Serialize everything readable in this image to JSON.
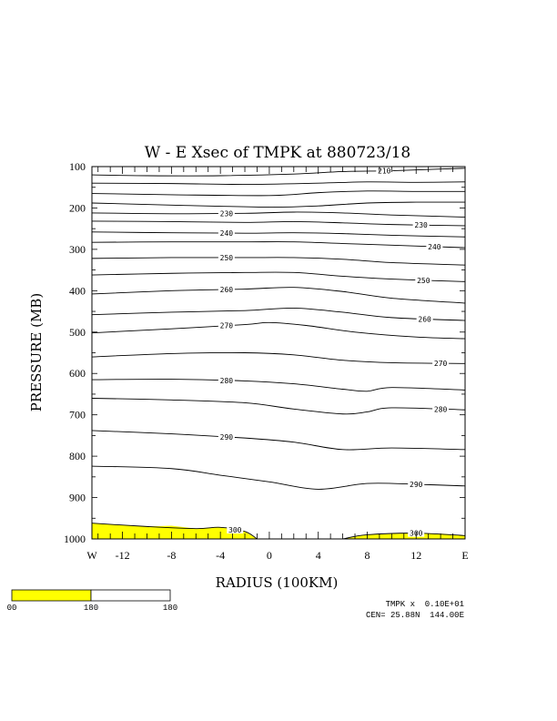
{
  "chart_data": {
    "type": "contour",
    "title": "W - E Xsec of TMPK at 880723/18",
    "xlabel": "RADIUS (100KM)",
    "ylabel": "PRESSURE (MB)",
    "x_ticks": [
      "W",
      "-12",
      "-8",
      "-4",
      "0",
      "4",
      "8",
      "12",
      "E"
    ],
    "y_ticks": [
      "100",
      "200",
      "300",
      "400",
      "500",
      "600",
      "700",
      "800",
      "900",
      "1000"
    ],
    "xlim": [
      -14.5,
      16
    ],
    "ylim": [
      1000,
      100
    ],
    "fill": {
      "color": "#ffff00",
      "threshold": 300
    },
    "contours": [
      {
        "level": "210",
        "label": "210",
        "label_x": 9.4,
        "points": [
          [
            -14.5,
            120
          ],
          [
            -10,
            122
          ],
          [
            -4,
            122
          ],
          [
            2,
            118
          ],
          [
            6,
            112
          ],
          [
            10,
            110
          ],
          [
            14,
            106
          ],
          [
            16,
            104
          ]
        ]
      },
      {
        "level": "210b",
        "label": "",
        "points": [
          [
            -14.5,
            140
          ],
          [
            -8,
            141
          ],
          [
            -2,
            143
          ],
          [
            4,
            140
          ],
          [
            8,
            137
          ],
          [
            12,
            138
          ],
          [
            16,
            137
          ]
        ]
      },
      {
        "level": "220",
        "label": "",
        "points": [
          [
            -14.5,
            165
          ],
          [
            -8,
            168
          ],
          [
            0,
            170
          ],
          [
            4,
            163
          ],
          [
            8,
            159
          ],
          [
            12,
            160
          ],
          [
            16,
            160
          ]
        ]
      },
      {
        "level": "220b",
        "label": "",
        "points": [
          [
            -14.5,
            188
          ],
          [
            -8,
            193
          ],
          [
            0,
            198
          ],
          [
            4,
            195
          ],
          [
            8,
            188
          ],
          [
            12,
            186
          ],
          [
            16,
            186
          ]
        ]
      },
      {
        "level": "230",
        "label": "230",
        "label_x": -3.5,
        "points": [
          [
            -14.5,
            212
          ],
          [
            -8,
            214
          ],
          [
            -2,
            213
          ],
          [
            2,
            210
          ],
          [
            6,
            212
          ],
          [
            10,
            217
          ],
          [
            16,
            222
          ]
        ]
      },
      {
        "level": "230b",
        "label": "230",
        "label_x": 12.4,
        "points": [
          [
            -14.5,
            232
          ],
          [
            -8,
            233
          ],
          [
            -2,
            235
          ],
          [
            2,
            233
          ],
          [
            6,
            236
          ],
          [
            10,
            240
          ],
          [
            16,
            243
          ]
        ]
      },
      {
        "level": "240",
        "label": "240",
        "label_x": -3.5,
        "points": [
          [
            -14.5,
            258
          ],
          [
            -8,
            260
          ],
          [
            -2,
            261
          ],
          [
            2,
            260
          ],
          [
            6,
            262
          ],
          [
            10,
            266
          ],
          [
            16,
            270
          ]
        ]
      },
      {
        "level": "240b",
        "label": "240",
        "label_x": 13.5,
        "points": [
          [
            -14.5,
            283
          ],
          [
            -8,
            282
          ],
          [
            -2,
            282
          ],
          [
            2,
            282
          ],
          [
            6,
            286
          ],
          [
            10,
            290
          ],
          [
            16,
            296
          ]
        ]
      },
      {
        "level": "250",
        "label": "250",
        "label_x": -3.5,
        "points": [
          [
            -14.5,
            322
          ],
          [
            -8,
            320
          ],
          [
            -2,
            320
          ],
          [
            2,
            320
          ],
          [
            6,
            324
          ],
          [
            10,
            332
          ],
          [
            16,
            338
          ]
        ]
      },
      {
        "level": "250b",
        "label": "250",
        "label_x": 12.6,
        "points": [
          [
            -14.5,
            362
          ],
          [
            -8,
            358
          ],
          [
            -2,
            356
          ],
          [
            2,
            356
          ],
          [
            6,
            365
          ],
          [
            10,
            372
          ],
          [
            16,
            378
          ]
        ]
      },
      {
        "level": "260",
        "label": "260",
        "label_x": -3.5,
        "points": [
          [
            -14.5,
            408
          ],
          [
            -8,
            400
          ],
          [
            -2,
            396
          ],
          [
            2,
            392
          ],
          [
            6,
            402
          ],
          [
            10,
            418
          ],
          [
            16,
            430
          ]
        ]
      },
      {
        "level": "260b",
        "label": "260",
        "label_x": 12.7,
        "points": [
          [
            -14.5,
            458
          ],
          [
            -8,
            452
          ],
          [
            -2,
            448
          ],
          [
            2,
            442
          ],
          [
            6,
            452
          ],
          [
            10,
            465
          ],
          [
            16,
            472
          ]
        ]
      },
      {
        "level": "270",
        "label": "270",
        "label_x": -3.5,
        "points": [
          [
            -14.5,
            502
          ],
          [
            -8,
            492
          ],
          [
            -2,
            482
          ],
          [
            0,
            477
          ],
          [
            3,
            484
          ],
          [
            7,
            500
          ],
          [
            12,
            512
          ],
          [
            16,
            516
          ]
        ]
      },
      {
        "level": "270b",
        "label": "270",
        "label_x": 14.0,
        "points": [
          [
            -14.5,
            560
          ],
          [
            -8,
            552
          ],
          [
            -2,
            550
          ],
          [
            2,
            555
          ],
          [
            6,
            568
          ],
          [
            10,
            574
          ],
          [
            16,
            576
          ]
        ]
      },
      {
        "level": "280",
        "label": "280",
        "label_x": -3.5,
        "points": [
          [
            -14.5,
            615
          ],
          [
            -8,
            614
          ],
          [
            -2,
            618
          ],
          [
            2,
            625
          ],
          [
            6,
            638
          ],
          [
            8,
            643
          ],
          [
            10,
            634
          ],
          [
            16,
            640
          ]
        ]
      },
      {
        "level": "280b",
        "label": "280",
        "label_x": 14.0,
        "points": [
          [
            -14.5,
            660
          ],
          [
            -8,
            664
          ],
          [
            -2,
            671
          ],
          [
            2,
            686
          ],
          [
            6,
            698
          ],
          [
            8,
            693
          ],
          [
            10,
            683
          ],
          [
            16,
            688
          ]
        ]
      },
      {
        "level": "290",
        "label": "290",
        "label_x": -3.5,
        "points": [
          [
            -14.5,
            738
          ],
          [
            -8,
            746
          ],
          [
            -2,
            756
          ],
          [
            2,
            766
          ],
          [
            6,
            784
          ],
          [
            10,
            780
          ],
          [
            16,
            784
          ]
        ]
      },
      {
        "level": "290b",
        "label": "290",
        "label_x": 12.0,
        "points": [
          [
            -14.5,
            824
          ],
          [
            -8,
            830
          ],
          [
            -4,
            846
          ],
          [
            0,
            862
          ],
          [
            4,
            880
          ],
          [
            8,
            866
          ],
          [
            12,
            868
          ],
          [
            16,
            872
          ]
        ]
      },
      {
        "level": "300",
        "label": "300",
        "label_x": -2.8,
        "points": [
          [
            -14.5,
            962
          ],
          [
            -10,
            970
          ],
          [
            -6,
            975
          ],
          [
            -4,
            972
          ],
          [
            -2,
            982
          ],
          [
            -1,
            1000
          ]
        ]
      },
      {
        "level": "300b",
        "label": "300",
        "label_x": 12.0,
        "points": [
          [
            6,
            1000
          ],
          [
            8,
            990
          ],
          [
            12,
            986
          ],
          [
            16,
            992
          ]
        ]
      }
    ],
    "fill_regions": [
      [
        [
          -14.5,
          1000
        ],
        [
          -14.5,
          962
        ],
        [
          -10,
          970
        ],
        [
          -8,
          968
        ],
        [
          -6,
          975
        ],
        [
          -4,
          972
        ],
        [
          -2,
          982
        ],
        [
          -1,
          1000
        ]
      ],
      [
        [
          6,
          1000
        ],
        [
          8,
          990
        ],
        [
          12,
          986
        ],
        [
          14,
          987
        ],
        [
          16,
          992
        ],
        [
          16,
          1000
        ]
      ]
    ]
  },
  "legend_bar": {
    "fill_color": "#ffff00",
    "labels": [
      "00",
      "180",
      "180"
    ]
  },
  "footer": {
    "line1": "TMPK x  0.10E+01",
    "line2": "CEN= 25.88N  144.00E"
  }
}
